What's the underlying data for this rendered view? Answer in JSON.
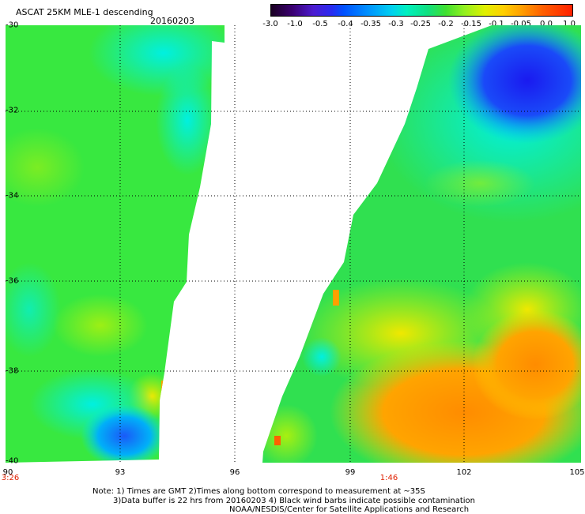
{
  "header": {
    "title": "ASCAT 25KM MLE-1 descending",
    "date": "20160203"
  },
  "colorbar": {
    "labels": [
      "-3.0",
      "-1.0",
      "-0.5",
      "-0.4",
      "-0.35",
      "-0.3",
      "-0.25",
      "-0.2",
      "-0.15",
      "-0.1",
      "-0.05",
      "0.0",
      "1.0"
    ],
    "colors": [
      "#1a0022",
      "#4c1cd0",
      "#0050ff",
      "#0090ff",
      "#00d0f0",
      "#00f0c0",
      "#10e080",
      "#40e030",
      "#90f020",
      "#e0f000",
      "#ffd000",
      "#ffa000",
      "#ff2000"
    ]
  },
  "map": {
    "lat_labels": [
      "-30",
      "-32",
      "-34",
      "-36",
      "-38",
      "-40"
    ],
    "lon_labels": [
      "90",
      "93",
      "96",
      "99",
      "102",
      "105"
    ],
    "times": [
      "3:26",
      "1:46"
    ],
    "colors": {
      "land": "#ffffff",
      "grid": "#000000"
    }
  },
  "footer": {
    "line1": "Note: 1) Times are GMT 2)Times along bottom correspond to measurement at ~35S",
    "line2": "3)Data buffer is 22 hrs from 20160203 4) Black wind barbs indicate possible contamination",
    "line3": "NOAA/NESDIS/Center for Satellite Applications and Research"
  }
}
